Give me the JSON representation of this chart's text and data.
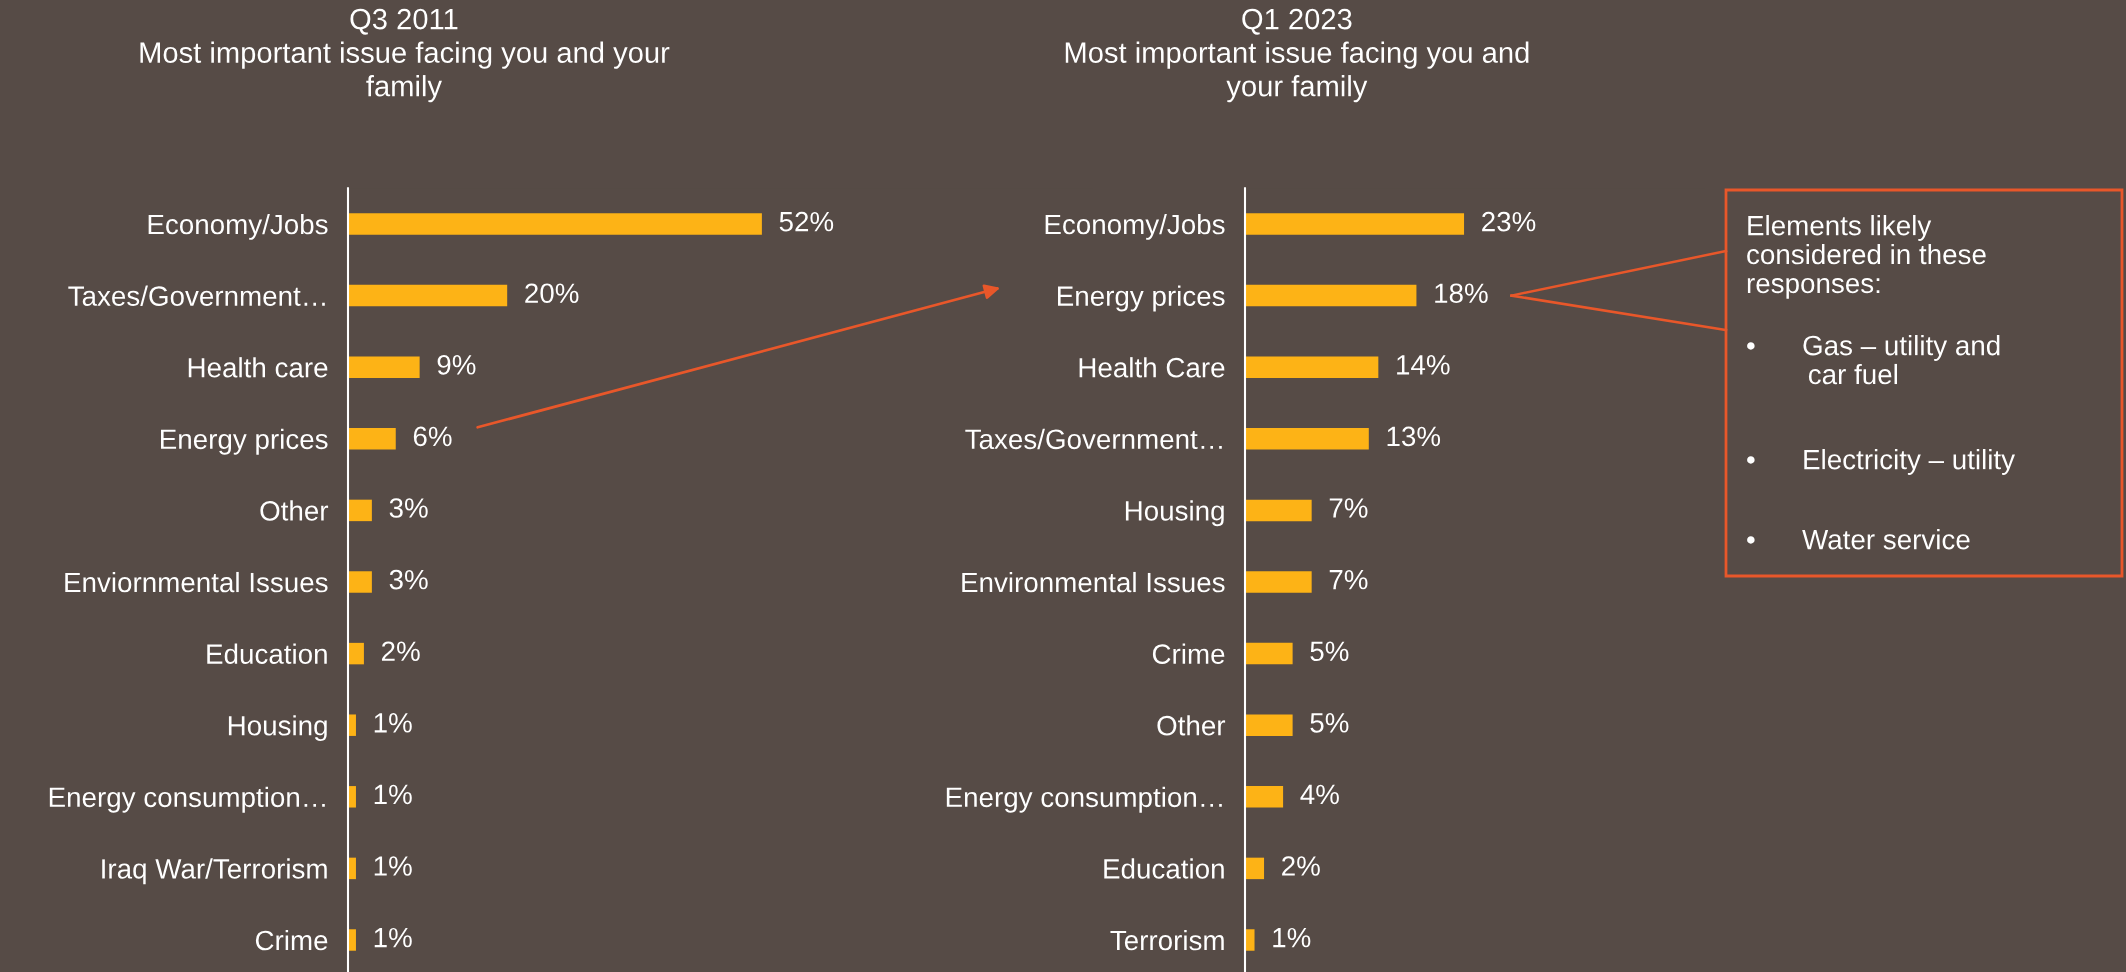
{
  "chart_data": [
    {
      "type": "bar",
      "orientation": "horizontal",
      "title": "Q3 2011\nMost important issue facing you and your\nfamily",
      "categories": [
        "Economy/Jobs",
        "Taxes/Government…",
        "Health care",
        "Energy prices",
        "Other",
        "Enviornmental Issues",
        "Education",
        "Housing",
        "Energy consumption…",
        "Iraq War/Terrorism",
        "Crime"
      ],
      "series": [
        {
          "color": "#fdb316",
          "values": [
            52,
            20,
            9,
            6,
            3,
            3,
            2,
            1,
            1,
            1,
            1
          ],
          "value_labels": [
            "52%",
            "20%",
            "9%",
            "6%",
            "3%",
            "3%",
            "2%",
            "1%",
            "1%",
            "1%",
            "1%"
          ]
        }
      ],
      "grid": false,
      "legend": false
    },
    {
      "type": "bar",
      "orientation": "horizontal",
      "title": "Q1 2023\nMost important issue facing you and\nyour family",
      "categories": [
        "Economy/Jobs",
        "Energy prices",
        "Health Care",
        "Taxes/Government…",
        "Housing",
        "Environmental Issues",
        "Crime",
        "Other",
        "Energy consumption…",
        "Education",
        "Terrorism"
      ],
      "series": [
        {
          "color": "#fdb316",
          "values": [
            23,
            18,
            14,
            13,
            7,
            7,
            5,
            5,
            4,
            2,
            1
          ],
          "value_labels": [
            "23%",
            "18%",
            "14%",
            "13%",
            "7%",
            "7%",
            "5%",
            "5%",
            "4%",
            "2%",
            "1%"
          ]
        }
      ],
      "grid": false,
      "legend": false,
      "annotations": [
        "Elements likely\nconsidered in these\nresponses:",
        "•      Gas – utility and\n        car fuel",
        "•      Electricity – utility",
        "•      Water service"
      ]
    }
  ]
}
